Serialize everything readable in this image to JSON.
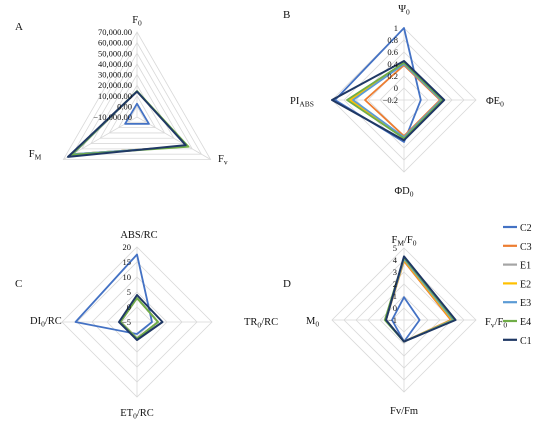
{
  "series_colors": {
    "C2": "#4472c4",
    "C3": "#ed7d31",
    "E1": "#a5a5a5",
    "E2": "#ffc000",
    "E3": "#5b9bd5",
    "E4": "#70ad47",
    "C1": "#1f3864"
  },
  "legend": [
    "C2",
    "C3",
    "E1",
    "E2",
    "E3",
    "E4",
    "C1"
  ],
  "chart_data": [
    {
      "panel": "A",
      "type": "radar",
      "axes": [
        "F0",
        "Fv",
        "FM"
      ],
      "axis_labels": [
        {
          "main": "F",
          "sub": "0"
        },
        {
          "main": "F",
          "sub": "v"
        },
        {
          "main": "F",
          "sub": "M"
        }
      ],
      "rmin": -10000,
      "rmax": 70000,
      "step": 10000,
      "tick_labels": [
        "−10,000.00",
        "0.00",
        "10,000.00",
        "20,000.00",
        "30,000.00",
        "40,000.00",
        "50,000.00",
        "60,000.00",
        "70,000.00"
      ],
      "series": [
        {
          "name": "C2",
          "values": [
            2500,
            3000,
            3000
          ]
        },
        {
          "name": "C3",
          "values": [
            14000,
            45000,
            60000
          ]
        },
        {
          "name": "E1",
          "values": [
            14000,
            45000,
            60000
          ]
        },
        {
          "name": "E2",
          "values": [
            14000,
            45000,
            60000
          ]
        },
        {
          "name": "E3",
          "values": [
            14000,
            45000,
            60000
          ]
        },
        {
          "name": "E4",
          "values": [
            14500,
            46000,
            61000
          ]
        },
        {
          "name": "C1",
          "values": [
            14000,
            43000,
            65000
          ]
        }
      ]
    },
    {
      "panel": "B",
      "type": "radar",
      "axes": [
        "Psi0",
        "PhiE0",
        "PhiD0",
        "PIABS"
      ],
      "axis_labels": [
        {
          "main": "Ψ",
          "sub": "0"
        },
        {
          "main": "ΦE",
          "sub": "0"
        },
        {
          "main": "ΦD",
          "sub": "0"
        },
        {
          "main": "PI",
          "sub": "ABS"
        }
      ],
      "rmin": -0.2,
      "rmax": 1.0,
      "step": 0.2,
      "tick_labels": [
        "−0.2",
        "0",
        "0.2",
        "0.4",
        "0.6",
        "0.8",
        "1"
      ],
      "series": [
        {
          "name": "C2",
          "values": [
            1.0,
            0.08,
            0.5,
            0.95
          ]
        },
        {
          "name": "C3",
          "values": [
            0.38,
            0.4,
            0.4,
            0.45
          ]
        },
        {
          "name": "E1",
          "values": [
            0.4,
            0.42,
            0.42,
            0.7
          ]
        },
        {
          "name": "E2",
          "values": [
            0.41,
            0.43,
            0.43,
            0.7
          ]
        },
        {
          "name": "E3",
          "values": [
            0.4,
            0.42,
            0.42,
            0.65
          ]
        },
        {
          "name": "E4",
          "values": [
            0.42,
            0.44,
            0.44,
            0.75
          ]
        },
        {
          "name": "C1",
          "values": [
            0.45,
            0.47,
            0.47,
            1.0
          ]
        }
      ]
    },
    {
      "panel": "C",
      "type": "radar",
      "axes": [
        "ABS/RC",
        "TR0/RC",
        "ET0/RC",
        "DI0/RC"
      ],
      "axis_labels": [
        {
          "main": "ABS/RC",
          "sub": ""
        },
        {
          "main": "TR",
          "sub": "0",
          "tail": "/RC"
        },
        {
          "main": "ET",
          "sub": "0",
          "tail": "/RC"
        },
        {
          "main": "DI",
          "sub": "0",
          "tail": "/RC"
        }
      ],
      "rmin": -5,
      "rmax": 20,
      "step": 5,
      "tick_labels": [
        "−5",
        "0",
        "5",
        "10",
        "15",
        "20"
      ],
      "series": [
        {
          "name": "C2",
          "values": [
            17.5,
            0.0,
            -1.0,
            15.5
          ]
        },
        {
          "name": "C3",
          "values": [
            3.0,
            2.0,
            0.5,
            0.5
          ]
        },
        {
          "name": "E1",
          "values": [
            3.0,
            2.0,
            0.5,
            0.5
          ]
        },
        {
          "name": "E2",
          "values": [
            3.0,
            2.0,
            0.5,
            0.5
          ]
        },
        {
          "name": "E3",
          "values": [
            3.0,
            2.0,
            0.5,
            0.5
          ]
        },
        {
          "name": "E4",
          "values": [
            3.0,
            2.0,
            0.5,
            0.5
          ]
        },
        {
          "name": "C1",
          "values": [
            4.0,
            3.5,
            1.0,
            1.0
          ]
        }
      ]
    },
    {
      "panel": "D",
      "type": "radar",
      "axes": [
        "FM/F0",
        "Fv/F0",
        "Fv/Fm",
        "M0"
      ],
      "axis_labels": [
        {
          "main": "F",
          "sub": "M",
          "tail": "/F",
          "sub2": "0"
        },
        {
          "main": "F",
          "sub": "v",
          "tail": "/F",
          "sub2": "0"
        },
        {
          "main": "Fv/Fm",
          "sub": ""
        },
        {
          "main": "M",
          "sub": "0"
        }
      ],
      "rmin": -1,
      "rmax": 5,
      "step": 1,
      "tick_labels": [
        "−1",
        "0",
        "1",
        "2",
        "3",
        "4",
        "5"
      ],
      "series": [
        {
          "name": "C2",
          "values": [
            0.9,
            0.3,
            0.8,
            0.0
          ]
        },
        {
          "name": "C3",
          "values": [
            3.9,
            2.9,
            0.8,
            0.5
          ]
        },
        {
          "name": "E1",
          "values": [
            4.0,
            3.0,
            0.8,
            0.5
          ]
        },
        {
          "name": "E2",
          "values": [
            4.0,
            3.0,
            0.8,
            0.5
          ]
        },
        {
          "name": "E3",
          "values": [
            4.1,
            3.1,
            0.8,
            0.5
          ]
        },
        {
          "name": "E4",
          "values": [
            4.2,
            3.2,
            0.8,
            0.6
          ]
        },
        {
          "name": "C1",
          "values": [
            4.3,
            3.3,
            0.8,
            0.5
          ]
        }
      ]
    }
  ],
  "panel_letters": [
    "A",
    "B",
    "C",
    "D"
  ]
}
